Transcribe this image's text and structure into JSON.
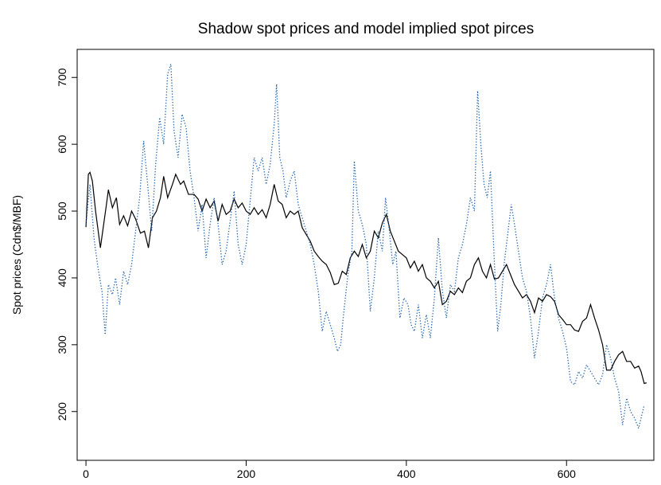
{
  "chart_data": {
    "type": "line",
    "title": "Shadow spot prices and model implied spot pirces",
    "y_label": "Spot prices (Cdn$/MBF)",
    "xlim": [
      -11,
      709
    ],
    "ylim": [
      127,
      742
    ],
    "xticks": [
      0,
      200,
      400,
      600
    ],
    "yticks": [
      200,
      300,
      400,
      500,
      600,
      700
    ],
    "series": [
      {
        "color": "#000000",
        "style": "solid",
        "x": [
          0,
          3,
          5,
          8,
          12,
          18,
          25,
          28,
          33,
          38,
          42,
          47,
          52,
          57,
          62,
          68,
          73,
          78,
          83,
          88,
          93,
          97,
          102,
          108,
          112,
          118,
          122,
          128,
          135,
          140,
          145,
          150,
          155,
          160,
          165,
          170,
          175,
          180,
          185,
          190,
          195,
          200,
          205,
          210,
          215,
          220,
          225,
          230,
          235,
          240,
          245,
          250,
          255,
          260,
          265,
          270,
          275,
          280,
          285,
          290,
          295,
          300,
          305,
          310,
          315,
          320,
          325,
          330,
          335,
          340,
          345,
          350,
          355,
          360,
          365,
          370,
          375,
          380,
          385,
          390,
          395,
          400,
          405,
          410,
          415,
          420,
          425,
          430,
          435,
          440,
          445,
          450,
          455,
          460,
          465,
          470,
          475,
          480,
          485,
          490,
          495,
          500,
          505,
          510,
          515,
          520,
          525,
          530,
          535,
          540,
          545,
          550,
          555,
          560,
          565,
          570,
          575,
          580,
          585,
          590,
          595,
          600,
          605,
          610,
          615,
          620,
          625,
          630,
          635,
          640,
          645,
          650,
          655,
          660,
          665,
          670,
          675,
          680,
          685,
          690,
          693,
          697,
          700
        ],
        "values": [
          476,
          555,
          558,
          545,
          500,
          445,
          505,
          532,
          505,
          520,
          480,
          493,
          478,
          500,
          488,
          467,
          470,
          445,
          490,
          500,
          520,
          552,
          520,
          540,
          555,
          540,
          545,
          525,
          525,
          518,
          500,
          518,
          505,
          515,
          485,
          510,
          495,
          500,
          518,
          505,
          512,
          500,
          495,
          505,
          495,
          502,
          490,
          510,
          540,
          515,
          510,
          490,
          500,
          495,
          500,
          475,
          465,
          455,
          440,
          432,
          425,
          420,
          408,
          390,
          392,
          410,
          405,
          430,
          440,
          432,
          450,
          430,
          440,
          470,
          460,
          482,
          495,
          470,
          455,
          440,
          435,
          430,
          415,
          425,
          410,
          420,
          400,
          395,
          385,
          395,
          360,
          365,
          380,
          375,
          385,
          378,
          395,
          400,
          420,
          430,
          410,
          400,
          420,
          398,
          400,
          410,
          420,
          405,
          390,
          380,
          370,
          375,
          365,
          348,
          370,
          365,
          375,
          372,
          365,
          345,
          338,
          330,
          330,
          322,
          320,
          335,
          340,
          360,
          340,
          322,
          300,
          262,
          262,
          275,
          285,
          290,
          275,
          275,
          265,
          268,
          260,
          242,
          243
        ]
      },
      {
        "color": "#1f5fa8",
        "style": "dotted",
        "x": [
          0,
          5,
          10,
          15,
          20,
          24,
          28,
          33,
          37,
          42,
          47,
          52,
          57,
          62,
          67,
          72,
          77,
          82,
          87,
          92,
          97,
          102,
          106,
          110,
          115,
          120,
          125,
          130,
          135,
          140,
          145,
          150,
          155,
          160,
          165,
          170,
          175,
          180,
          185,
          190,
          195,
          200,
          205,
          210,
          215,
          220,
          225,
          230,
          235,
          238,
          242,
          246,
          250,
          255,
          260,
          265,
          270,
          275,
          280,
          285,
          290,
          295,
          300,
          305,
          310,
          314,
          318,
          322,
          327,
          332,
          335,
          340,
          345,
          350,
          355,
          360,
          365,
          370,
          374,
          378,
          383,
          387,
          392,
          397,
          402,
          406,
          410,
          415,
          420,
          425,
          430,
          435,
          440,
          445,
          450,
          455,
          460,
          465,
          470,
          475,
          480,
          485,
          489,
          493,
          497,
          501,
          505,
          510,
          514,
          518,
          522,
          527,
          531,
          535,
          540,
          545,
          550,
          555,
          560,
          565,
          570,
          575,
          580,
          585,
          590,
          595,
          600,
          605,
          610,
          615,
          620,
          625,
          630,
          635,
          640,
          645,
          650,
          655,
          660,
          665,
          670,
          675,
          680,
          685,
          690,
          695,
          697
        ],
        "values": [
          480,
          540,
          460,
          415,
          380,
          315,
          390,
          375,
          400,
          360,
          410,
          390,
          420,
          470,
          520,
          605,
          540,
          470,
          570,
          640,
          600,
          705,
          720,
          620,
          580,
          645,
          625,
          560,
          520,
          470,
          510,
          430,
          480,
          520,
          480,
          420,
          440,
          485,
          530,
          450,
          420,
          450,
          515,
          580,
          560,
          580,
          540,
          570,
          630,
          690,
          580,
          560,
          520,
          545,
          560,
          510,
          490,
          470,
          450,
          420,
          380,
          320,
          350,
          330,
          310,
          290,
          300,
          350,
          405,
          440,
          575,
          500,
          480,
          450,
          350,
          400,
          470,
          440,
          520,
          480,
          420,
          440,
          340,
          370,
          360,
          330,
          320,
          360,
          310,
          345,
          310,
          370,
          460,
          380,
          340,
          390,
          380,
          430,
          450,
          480,
          520,
          500,
          680,
          600,
          540,
          520,
          560,
          420,
          320,
          360,
          420,
          470,
          510,
          480,
          440,
          400,
          380,
          340,
          280,
          320,
          370,
          390,
          420,
          370,
          340,
          320,
          295,
          245,
          240,
          260,
          250,
          270,
          260,
          250,
          240,
          255,
          300,
          280,
          250,
          230,
          180,
          220,
          200,
          190,
          175,
          200,
          210
        ]
      }
    ]
  }
}
